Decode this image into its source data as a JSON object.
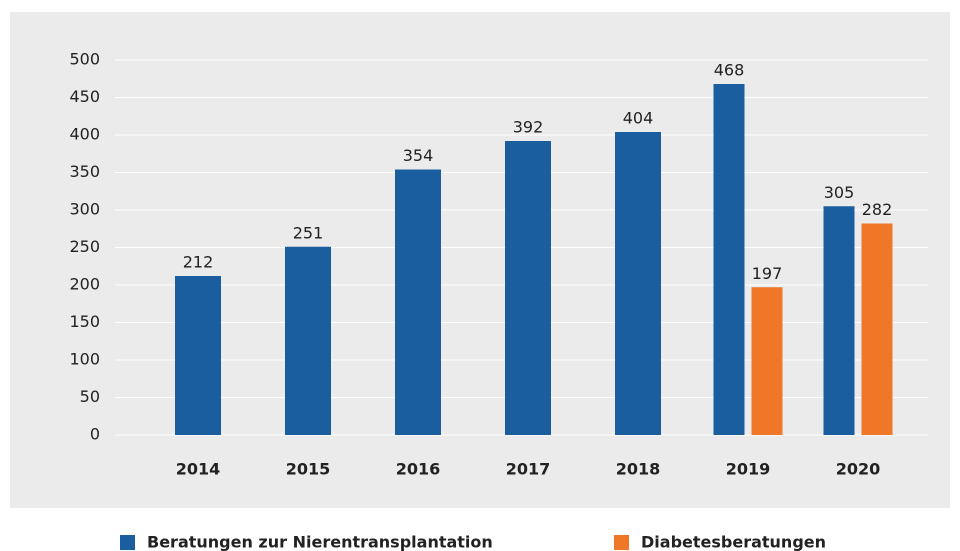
{
  "chart_data": {
    "type": "bar",
    "categories": [
      "2014",
      "2015",
      "2016",
      "2017",
      "2018",
      "2019",
      "2020"
    ],
    "series": [
      {
        "name": "Beratungen zur Nierentransplantation",
        "color": "#1b5e9f",
        "values": [
          212,
          251,
          354,
          392,
          404,
          468,
          305
        ]
      },
      {
        "name": "Diabetesberatungen",
        "color": "#f07628",
        "values": [
          null,
          null,
          null,
          null,
          null,
          197,
          282
        ]
      }
    ],
    "ylim": [
      0,
      500
    ],
    "yticks": [
      0,
      50,
      100,
      150,
      200,
      250,
      300,
      350,
      400,
      450,
      500
    ],
    "grid": true
  }
}
